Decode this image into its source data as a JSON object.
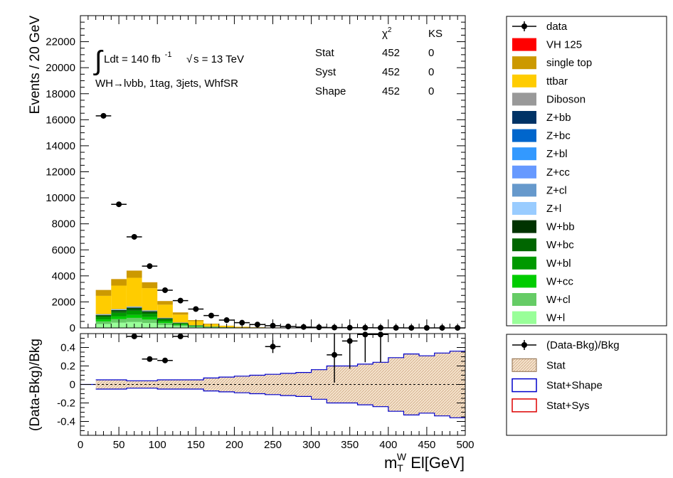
{
  "chart_data": [
    {
      "type": "bar",
      "stacked": true,
      "ylabel": "Events / 20 GeV",
      "xlim": [
        0,
        500
      ],
      "ylim": [
        0,
        24000
      ],
      "yticks": [
        "0",
        "2000",
        "4000",
        "6000",
        "8000",
        "10000",
        "12000",
        "14000",
        "16000",
        "18000",
        "20000",
        "22000"
      ],
      "bin_edges": [
        20,
        40,
        60,
        80,
        100,
        120,
        140,
        160,
        180,
        200,
        220,
        240,
        260,
        280,
        300,
        320,
        340,
        360,
        380,
        400,
        420,
        440,
        460,
        480,
        500
      ],
      "annotations": {
        "lumi_prefix": "Ldt = 140 fb",
        "lumi_exp": "-1",
        "sqrt_s": "s = 13 TeV",
        "region": "WH→lνbb, 1tag, 3jets, WhfSR",
        "chi2_header": "χ",
        "chi2_sup": "2",
        "ks_header": "KS",
        "rows": [
          {
            "label": "Stat",
            "chi2": "452",
            "ks": "0"
          },
          {
            "label": "Syst",
            "chi2": "452",
            "ks": "0"
          },
          {
            "label": "Shape",
            "chi2": "452",
            "ks": "0"
          }
        ]
      },
      "series": [
        {
          "name": "W+l",
          "color": "#99ff99",
          "values": [
            300,
            400,
            450,
            380,
            220,
            120,
            60,
            30,
            15,
            8,
            4,
            2,
            1,
            1,
            0,
            0,
            0,
            0,
            0,
            0,
            0,
            0,
            0,
            0
          ]
        },
        {
          "name": "W+cl",
          "color": "#66cc66",
          "values": [
            200,
            280,
            320,
            260,
            150,
            80,
            40,
            20,
            10,
            5,
            3,
            2,
            1,
            0,
            0,
            0,
            0,
            0,
            0,
            0,
            0,
            0,
            0,
            0
          ]
        },
        {
          "name": "W+cc",
          "color": "#00cc00",
          "values": [
            150,
            200,
            230,
            190,
            110,
            60,
            30,
            15,
            8,
            4,
            2,
            1,
            1,
            0,
            0,
            0,
            0,
            0,
            0,
            0,
            0,
            0,
            0,
            0
          ]
        },
        {
          "name": "W+bl",
          "color": "#009900",
          "values": [
            200,
            280,
            320,
            260,
            150,
            80,
            40,
            20,
            10,
            5,
            3,
            2,
            1,
            0,
            0,
            0,
            0,
            0,
            0,
            0,
            0,
            0,
            0,
            0
          ]
        },
        {
          "name": "W+bc",
          "color": "#006600",
          "values": [
            100,
            140,
            160,
            130,
            75,
            40,
            20,
            10,
            5,
            3,
            2,
            1,
            0,
            0,
            0,
            0,
            0,
            0,
            0,
            0,
            0,
            0,
            0,
            0
          ]
        },
        {
          "name": "W+bb",
          "color": "#003300",
          "values": [
            50,
            70,
            80,
            65,
            40,
            20,
            10,
            5,
            3,
            2,
            1,
            0,
            0,
            0,
            0,
            0,
            0,
            0,
            0,
            0,
            0,
            0,
            0,
            0
          ]
        },
        {
          "name": "Z+l",
          "color": "#99ccff",
          "values": [
            20,
            25,
            28,
            22,
            12,
            6,
            3,
            2,
            1,
            0,
            0,
            0,
            0,
            0,
            0,
            0,
            0,
            0,
            0,
            0,
            0,
            0,
            0,
            0
          ]
        },
        {
          "name": "Z+cl",
          "color": "#6699cc",
          "values": [
            10,
            12,
            14,
            11,
            6,
            3,
            2,
            1,
            0,
            0,
            0,
            0,
            0,
            0,
            0,
            0,
            0,
            0,
            0,
            0,
            0,
            0,
            0,
            0
          ]
        },
        {
          "name": "Z+cc",
          "color": "#6699ff",
          "values": [
            5,
            6,
            7,
            5,
            3,
            2,
            1,
            0,
            0,
            0,
            0,
            0,
            0,
            0,
            0,
            0,
            0,
            0,
            0,
            0,
            0,
            0,
            0,
            0
          ]
        },
        {
          "name": "Z+bl",
          "color": "#3399ff",
          "values": [
            5,
            6,
            7,
            5,
            3,
            2,
            1,
            0,
            0,
            0,
            0,
            0,
            0,
            0,
            0,
            0,
            0,
            0,
            0,
            0,
            0,
            0,
            0,
            0
          ]
        },
        {
          "name": "Z+bc",
          "color": "#0066cc",
          "values": [
            3,
            4,
            4,
            3,
            2,
            1,
            0,
            0,
            0,
            0,
            0,
            0,
            0,
            0,
            0,
            0,
            0,
            0,
            0,
            0,
            0,
            0,
            0,
            0
          ]
        },
        {
          "name": "Z+bb",
          "color": "#003366",
          "values": [
            3,
            4,
            4,
            3,
            2,
            1,
            0,
            0,
            0,
            0,
            0,
            0,
            0,
            0,
            0,
            0,
            0,
            0,
            0,
            0,
            0,
            0,
            0,
            0
          ]
        },
        {
          "name": "Diboson",
          "color": "#999999",
          "values": [
            20,
            25,
            28,
            22,
            12,
            6,
            3,
            2,
            1,
            0,
            0,
            0,
            0,
            0,
            0,
            0,
            0,
            0,
            0,
            0,
            0,
            0,
            0,
            0
          ]
        },
        {
          "name": "ttbar",
          "color": "#ffcc00",
          "values": [
            1400,
            1800,
            2200,
            1700,
            1000,
            600,
            300,
            170,
            90,
            50,
            30,
            18,
            11,
            7,
            4,
            3,
            2,
            1,
            1,
            1,
            0,
            0,
            0,
            0
          ]
        },
        {
          "name": "single top",
          "color": "#cc9900",
          "values": [
            450,
            500,
            550,
            450,
            280,
            170,
            90,
            50,
            28,
            16,
            10,
            6,
            4,
            2,
            1,
            1,
            1,
            0,
            0,
            0,
            0,
            0,
            0,
            0
          ]
        },
        {
          "name": "VH 125",
          "color": "#ff0000",
          "values": [
            1,
            2,
            2,
            2,
            1,
            1,
            0,
            0,
            0,
            0,
            0,
            0,
            0,
            0,
            0,
            0,
            0,
            0,
            0,
            0,
            0,
            0,
            0,
            0
          ]
        }
      ],
      "data": {
        "name": "data",
        "x": [
          30,
          50,
          70,
          90,
          110,
          130,
          150,
          170,
          190,
          210,
          230,
          250,
          270,
          290,
          310,
          330,
          350,
          370,
          390,
          410,
          430,
          450,
          470,
          490
        ],
        "y": [
          16300,
          9500,
          7000,
          4750,
          2900,
          2100,
          1450,
          950,
          600,
          400,
          260,
          170,
          110,
          70,
          45,
          30,
          18,
          12,
          8,
          5,
          3,
          2,
          1,
          1
        ]
      },
      "legend": {
        "placement": "right",
        "entries": [
          {
            "label": "data",
            "style": "marker"
          },
          {
            "label": "VH 125",
            "color": "#ff0000"
          },
          {
            "label": "single top",
            "color": "#cc9900"
          },
          {
            "label": "ttbar",
            "color": "#ffcc00"
          },
          {
            "label": "Diboson",
            "color": "#999999"
          },
          {
            "label": "Z+bb",
            "color": "#003366"
          },
          {
            "label": "Z+bc",
            "color": "#0066cc"
          },
          {
            "label": "Z+bl",
            "color": "#3399ff"
          },
          {
            "label": "Z+cc",
            "color": "#6699ff"
          },
          {
            "label": "Z+cl",
            "color": "#6699cc"
          },
          {
            "label": "Z+l",
            "color": "#99ccff"
          },
          {
            "label": "W+bb",
            "color": "#003300"
          },
          {
            "label": "W+bc",
            "color": "#006600"
          },
          {
            "label": "W+bl",
            "color": "#009900"
          },
          {
            "label": "W+cc",
            "color": "#00cc00"
          },
          {
            "label": "W+cl",
            "color": "#66cc66"
          },
          {
            "label": "W+l",
            "color": "#99ff99"
          }
        ]
      }
    },
    {
      "type": "scatter",
      "ylabel": "(Data-Bkg)/Bkg",
      "xlabel_main": "m",
      "xlabel_sub": "T",
      "xlabel_sup": "W",
      "xlabel_rest": " El[GeV]",
      "xlim": [
        0,
        500
      ],
      "ylim": [
        -0.55,
        0.55
      ],
      "xticks": [
        "0",
        "50",
        "100",
        "150",
        "200",
        "250",
        "300",
        "350",
        "400",
        "450",
        "500"
      ],
      "yticks": [
        "-0.4",
        "-0.2",
        "0",
        "0.2",
        "0.4"
      ],
      "points": [
        {
          "x": 70,
          "y": 0.52,
          "err": 0.01
        },
        {
          "x": 90,
          "y": 0.275,
          "err": 0.01
        },
        {
          "x": 110,
          "y": 0.26,
          "err": 0.01
        },
        {
          "x": 130,
          "y": 0.52,
          "err": 0.01
        },
        {
          "x": 250,
          "y": 0.41,
          "err": 0.07
        },
        {
          "x": 330,
          "y": 0.32,
          "err": 0.3
        },
        {
          "x": 350,
          "y": 0.47,
          "err": 0.3
        },
        {
          "x": 370,
          "y": 0.54,
          "err": 0.3
        },
        {
          "x": 390,
          "y": 0.54,
          "err": 0.3
        }
      ],
      "band_halfwidth": [
        0.05,
        0.05,
        0.04,
        0.04,
        0.05,
        0.05,
        0.05,
        0.07,
        0.08,
        0.09,
        0.1,
        0.11,
        0.12,
        0.13,
        0.16,
        0.2,
        0.2,
        0.22,
        0.24,
        0.29,
        0.33,
        0.31,
        0.34,
        0.36
      ],
      "legend": {
        "placement": "right",
        "entries": [
          {
            "label": "(Data-Bkg)/Bkg",
            "style": "marker"
          },
          {
            "label": "Stat",
            "style": "hatch"
          },
          {
            "label": "Stat+Shape",
            "color": "#0000cc",
            "style": "outline"
          },
          {
            "label": "Stat+Sys",
            "color": "#dd0000",
            "style": "outline"
          }
        ]
      }
    }
  ]
}
